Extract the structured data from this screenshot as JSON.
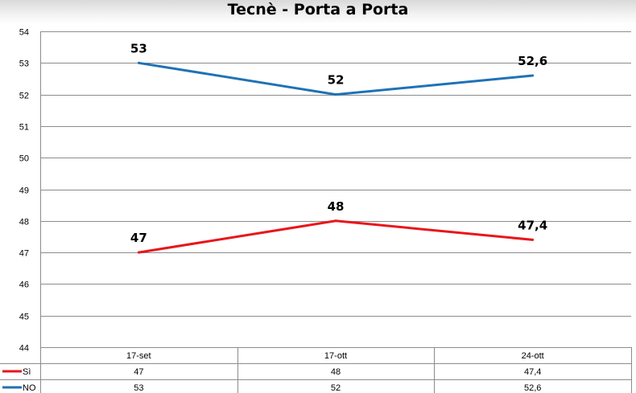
{
  "chart_data": {
    "type": "line",
    "title": "Tecnè - Porta a Porta",
    "categories": [
      "17-set",
      "17-ott",
      "24-ott"
    ],
    "ylim": [
      44,
      54
    ],
    "y_ticks": [
      "44",
      "45",
      "46",
      "47",
      "48",
      "49",
      "50",
      "51",
      "52",
      "53",
      "54"
    ],
    "grid": true,
    "legend_placement": "bottom data table",
    "series": [
      {
        "name": "Sì",
        "color": "#e8161b",
        "values": [
          47,
          48,
          47.4
        ],
        "labels": [
          "47",
          "48",
          "47,4"
        ]
      },
      {
        "name": "NO",
        "color": "#1f72b6",
        "values": [
          53,
          52,
          52.6
        ],
        "labels": [
          "53",
          "52",
          "52,6"
        ]
      }
    ]
  }
}
